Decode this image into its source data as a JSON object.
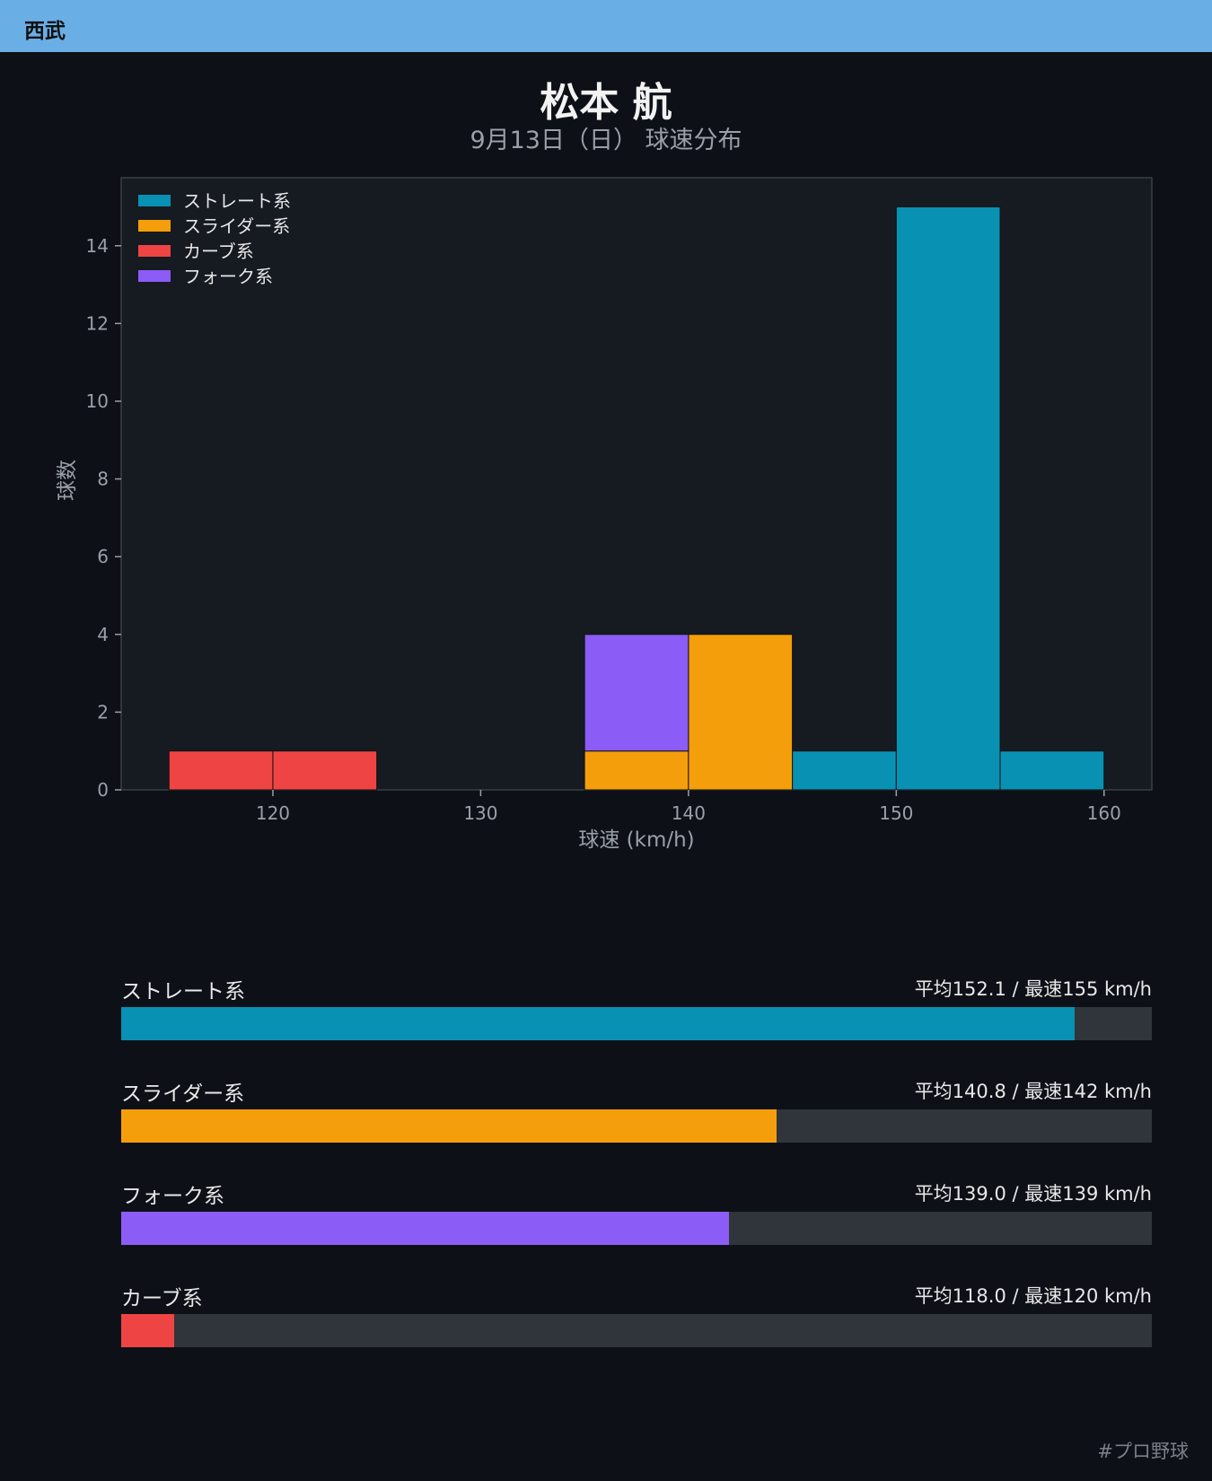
{
  "header": {
    "team": "西武"
  },
  "title": "松本 航",
  "subtitle": "9月13日（日） 球速分布",
  "colors": {
    "straight": "#0891b2",
    "slider": "#f59e0b",
    "curve": "#ef4444",
    "fork": "#8b5cf6",
    "track": "#30343b",
    "plot_bg": "#161a21",
    "page_bg": "#0d1017"
  },
  "chart_data": {
    "type": "bar",
    "stacked": true,
    "xlabel": "球速 (km/h)",
    "ylabel": "球数",
    "xlim": [
      112.7,
      162.3
    ],
    "ylim": [
      0,
      15.75
    ],
    "xticks": [
      120,
      130,
      140,
      150,
      160
    ],
    "yticks": [
      0,
      2,
      4,
      6,
      8,
      10,
      12,
      14
    ],
    "bin_width": 5,
    "legend_position": "top-left",
    "grid": false,
    "series": [
      {
        "name": "ストレート系",
        "color_key": "straight",
        "bins": [
          {
            "start": 145,
            "count": 1
          },
          {
            "start": 150,
            "count": 15
          },
          {
            "start": 155,
            "count": 1
          }
        ]
      },
      {
        "name": "スライダー系",
        "color_key": "slider",
        "bins": [
          {
            "start": 135,
            "count": 1
          },
          {
            "start": 140,
            "count": 4
          }
        ]
      },
      {
        "name": "カーブ系",
        "color_key": "curve",
        "bins": [
          {
            "start": 115,
            "count": 1
          },
          {
            "start": 120,
            "count": 1
          }
        ]
      },
      {
        "name": "フォーク系",
        "color_key": "fork",
        "bins": [
          {
            "start": 135,
            "count": 3
          }
        ]
      }
    ]
  },
  "speed_summary": [
    {
      "label": "ストレート系",
      "stats": "平均152.1 / 最速155 km/h",
      "fill": 0.925,
      "color_key": "straight"
    },
    {
      "label": "スライダー系",
      "stats": "平均140.8 / 最速142 km/h",
      "fill": 0.636,
      "color_key": "slider"
    },
    {
      "label": "フォーク系",
      "stats": "平均139.0 / 最速139 km/h",
      "fill": 0.59,
      "color_key": "fork"
    },
    {
      "label": "カーブ系",
      "stats": "平均118.0 / 最速120 km/h",
      "fill": 0.051,
      "color_key": "curve"
    }
  ],
  "footer": {
    "hashtag": "#プロ野球"
  }
}
